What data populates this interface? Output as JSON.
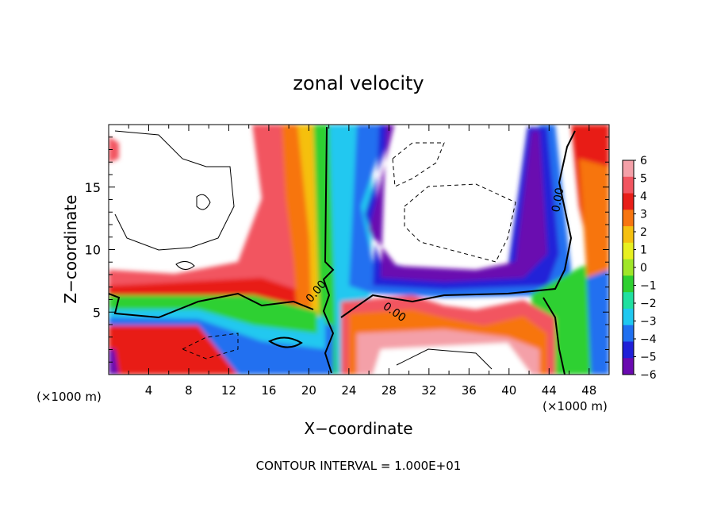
{
  "chart_data": {
    "type": "heatmap",
    "title": "zonal velocity",
    "xlabel": "X−coordinate",
    "ylabel": "Z−coordinate",
    "x_unit_left": "(×1000 m)",
    "x_unit_right": "(×1000 m)",
    "footer": "CONTOUR INTERVAL = 1.000E+01",
    "xlim": [
      0,
      50
    ],
    "ylim": [
      0,
      20
    ],
    "x_ticks": [
      "4",
      "8",
      "12",
      "16",
      "20",
      "24",
      "28",
      "32",
      "36",
      "40",
      "44",
      "48"
    ],
    "x_tick_values": [
      4,
      8,
      12,
      16,
      20,
      24,
      28,
      32,
      36,
      40,
      44,
      48
    ],
    "y_ticks": [
      "5",
      "10",
      "15"
    ],
    "y_tick_values": [
      5,
      10,
      15
    ],
    "colorbar": {
      "labels": [
        "6",
        "5",
        "4",
        "3",
        "2",
        "1",
        "0",
        "−1",
        "−2",
        "−3",
        "−4",
        "−5",
        "−6"
      ],
      "values": [
        6,
        5,
        4,
        3,
        2,
        1,
        0,
        -1,
        -2,
        -3,
        -4,
        -5,
        -6
      ],
      "colors": [
        "#f4a0a8",
        "#f25560",
        "#e81e18",
        "#f77510",
        "#f5c010",
        "#e8f020",
        "#a0e628",
        "#2ed030",
        "#20e0a0",
        "#20c8f0",
        "#2070f0",
        "#2020d8",
        "#6a0ab0"
      ]
    },
    "contour_labels": [
      "0.00",
      "0.00",
      "0.00"
    ]
  }
}
